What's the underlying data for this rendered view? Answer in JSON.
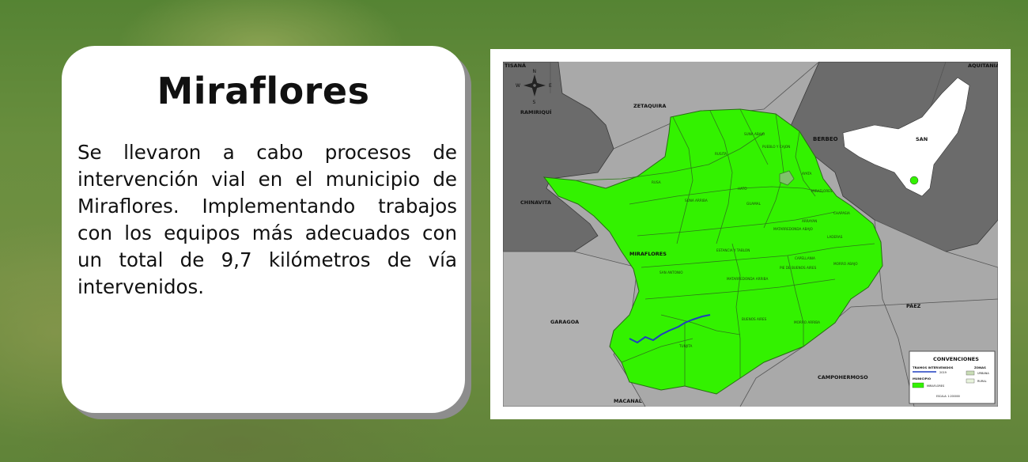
{
  "card": {
    "title": "Miraflores",
    "body": "Se llevaron a cabo procesos de intervención vial en el municipio de Miraflores. Implementando trabajos con los equipos más adecuados con un total de 9,7 kilómetros de vía intervenidos."
  },
  "map": {
    "neighbors": {
      "tisana": "TISANÁ",
      "aquitania": "AQUITANIA",
      "ramiriqui": "RAMIRIQUÍ",
      "zetaquira": "ZETAQUIRA",
      "berbeo": "BERBEO",
      "chinavita": "CHINAVITA",
      "garagoa": "GARAGOA",
      "paez": "PÁEZ",
      "campohermoso": "CAMPOHERMOSO",
      "macanal": "MACANAL",
      "san": "SAN"
    },
    "municipality_label": "MIRAFLORES",
    "veredas": {
      "suna_abajo": "SUNA ABAJO",
      "rusita": "RUSITA",
      "pueblo_cajon": "PUEBLO Y CAJON",
      "ayata": "AYATA",
      "rusa": "RUSA",
      "suna_arriba": "SUNA ARRIBA",
      "hato": "HATO",
      "miraflores": "MIRAFLORES",
      "guamal": "GUAMAL",
      "chapasia": "CHAPASIA",
      "arrayan": "ARRAYAN",
      "matarredonda_abajo": "MATARREDONDA ABAJO",
      "laderas": "LADERAS",
      "estancia_tablon": "ESTANCIA Y TABLON",
      "capellania": "CAPELLANIA",
      "morro_abajo": "MORRO ABAJO",
      "san_antonio": "SAN ANTONIO",
      "pie_buenos_aires": "PIE DE BUENOS AIRES",
      "matarredonda_arriba": "MATARREDONDA ARRIBA",
      "buenos_aires": "BUENOS AIRES",
      "morro_arriba": "MORRO ARRIBA",
      "tunjita": "TUNJITA"
    },
    "compass": {
      "n": "N",
      "s": "S",
      "e": "E",
      "w": "W"
    },
    "legend": {
      "title": "CONVENCIONES",
      "tramos": "TRAMOS INTERVENIDOS",
      "year": "2019",
      "zonas": "ZONAS",
      "urbana": "URBANA",
      "rural": "RURAL",
      "municipio": "MUNICIPIO",
      "miraflores": "MIRAFLORES",
      "escala": "ESCALA: 1:200000"
    },
    "colors": {
      "municipality": "#33f200",
      "neighbor_light": "#a9a9a9",
      "neighbor_dark": "#6b6b6b",
      "road": "#1f3fbf"
    }
  }
}
